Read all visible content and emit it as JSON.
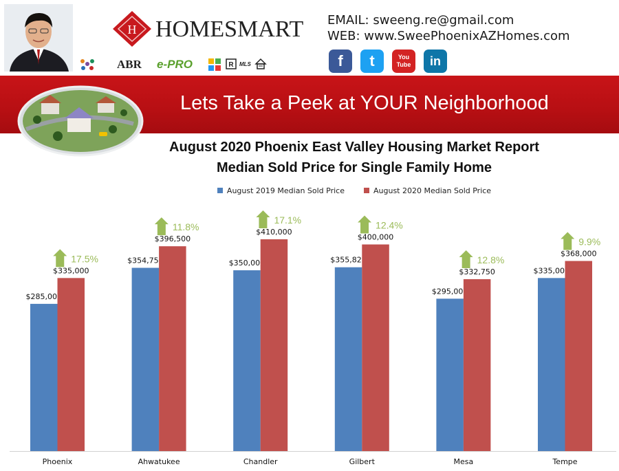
{
  "contact": {
    "email_line": "EMAIL: sweeng.re@gmail.com",
    "web_line": "WEB: www.SweePhoenixAZHomes.com"
  },
  "brand": {
    "name": "HOMESMART"
  },
  "badges": [
    "ABR",
    "e-PRO",
    "MLS"
  ],
  "social": [
    {
      "icon": "facebook-icon",
      "glyph": "f",
      "color": "#3b5998"
    },
    {
      "icon": "twitter-icon",
      "glyph": "t",
      "color": "#1da1f2"
    },
    {
      "icon": "youtube-icon",
      "glyph": "You Tube",
      "color": "#d32323"
    },
    {
      "icon": "linkedin-icon",
      "glyph": "in",
      "color": "#0e76a8"
    }
  ],
  "banner": {
    "text": "Lets Take a Peek at YOUR Neighborhood"
  },
  "chart_data": {
    "type": "bar",
    "title": "August 2020 Phoenix East Valley Housing Market Report",
    "subtitle": "Median Sold Price for Single Family Home",
    "legend_position": "top",
    "grid": false,
    "ylim": [
      0,
      410000
    ],
    "categories": [
      "Phoenix",
      "Ahwatukee",
      "Chandler",
      "Gilbert",
      "Mesa",
      "Tempe"
    ],
    "series": [
      {
        "name": "August 2019 Median Sold Price",
        "color": "#4f81bd",
        "values": [
          285000,
          354750,
          350000,
          355825,
          295000,
          335000
        ],
        "labels": [
          "$285,000",
          "$354,750",
          "$350,000",
          "$355,825",
          "$295,000",
          "$335,000"
        ]
      },
      {
        "name": "August 2020 Median Sold Price",
        "color": "#c0504d",
        "values": [
          335000,
          396500,
          410000,
          400000,
          332750,
          368000
        ],
        "labels": [
          "$335,000",
          "$396,500",
          "$410,000",
          "$400,000",
          "$332,750",
          "$368,000"
        ]
      }
    ],
    "annotations": {
      "color": "#9bbb59",
      "changes": [
        "17.5%",
        "11.8%",
        "17.1%",
        "12.4%",
        "12.8%",
        "9.9%"
      ]
    }
  }
}
